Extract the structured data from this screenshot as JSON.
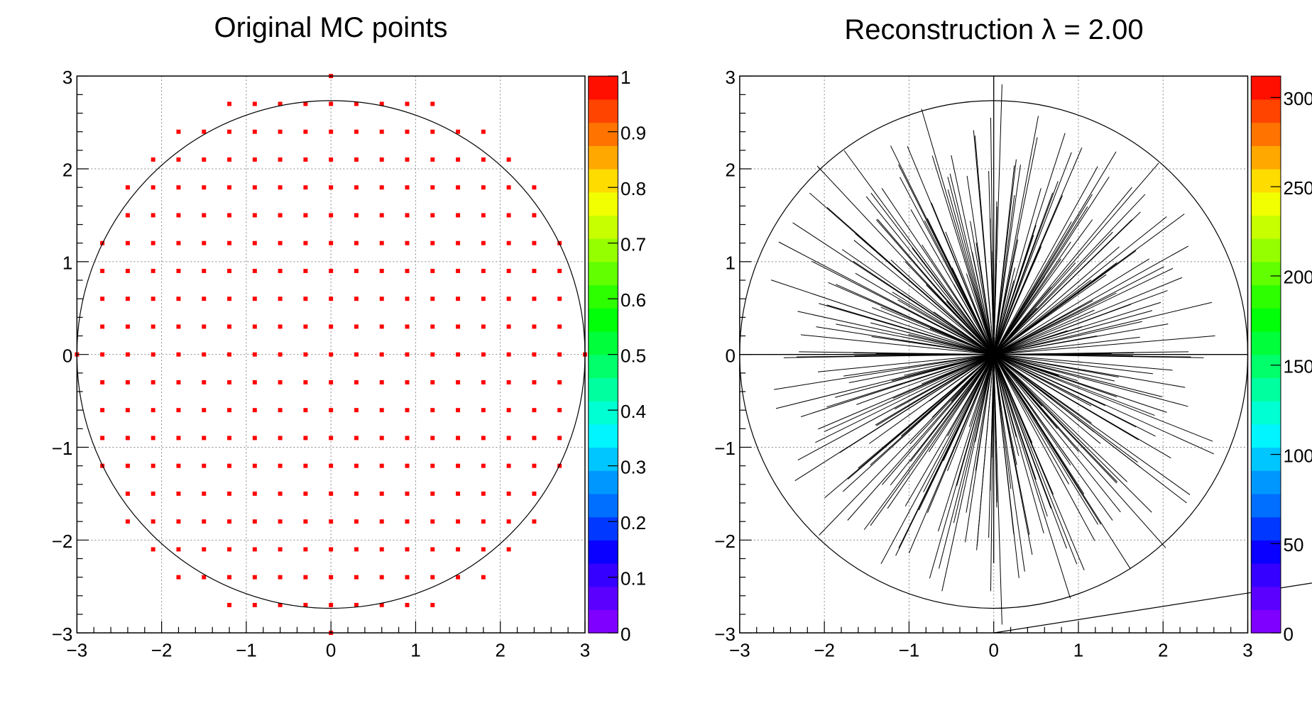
{
  "chart_data": [
    {
      "type": "scatter",
      "title": "Original MC points",
      "xlabel": "",
      "ylabel": "",
      "xlim": [
        -3,
        3
      ],
      "ylim": [
        -3,
        3
      ],
      "x_ticks": [
        "−3",
        "−2",
        "−1",
        "0",
        "1",
        "2",
        "3"
      ],
      "y_ticks": [
        "−3",
        "−2",
        "−1",
        "0",
        "1",
        "2",
        "3"
      ],
      "grid": true,
      "marker_color": "#ff0000",
      "boundary": "circle of radius 3 centred at (0,0)",
      "grid_spacing": 0.3,
      "points_description": "regular grid of points with spacing 0.3 inside the unit circle of radius 3",
      "colorbar": {
        "range": [
          0,
          1
        ],
        "labels": [
          "0",
          "0.1",
          "0.2",
          "0.3",
          "0.4",
          "0.5",
          "0.6",
          "0.7",
          "0.8",
          "0.9",
          "1"
        ]
      }
    },
    {
      "type": "line",
      "title": "Reconstruction λ = 2.00",
      "xlabel": "",
      "ylabel": "",
      "xlim": [
        -3,
        3
      ],
      "ylim": [
        -3,
        3
      ],
      "x_ticks": [
        "−3",
        "−2",
        "−1",
        "0",
        "1",
        "2",
        "3"
      ],
      "y_ticks": [
        "−3",
        "−2",
        "−1",
        "0",
        "1",
        "2",
        "3"
      ],
      "grid": true,
      "line_color": "#000000",
      "boundary": "circle of radius 3 centred at (0,0)",
      "rays_origin": [
        0,
        0
      ],
      "rays_description": "radial line segments from the origin toward the original MC grid points",
      "colorbar": {
        "range": [
          0,
          312
        ],
        "labels": [
          "0",
          "50",
          "100",
          "150",
          "200",
          "250",
          "300"
        ],
        "label_values": [
          0,
          50,
          100,
          150,
          200,
          250,
          300
        ]
      }
    }
  ],
  "palette": [
    "#7f00ff",
    "#5b00ff",
    "#3500ff",
    "#0a00ff",
    "#0038ff",
    "#006fff",
    "#0098ff",
    "#00c6ff",
    "#00f5ff",
    "#00ffd2",
    "#00ff9f",
    "#00ff6b",
    "#00ff3a",
    "#00ff08",
    "#2dff00",
    "#61ff00",
    "#95ff00",
    "#c7ff00",
    "#f2ff00",
    "#ffdc00",
    "#ffa800",
    "#ff7400",
    "#ff4400",
    "#ff0f00"
  ]
}
